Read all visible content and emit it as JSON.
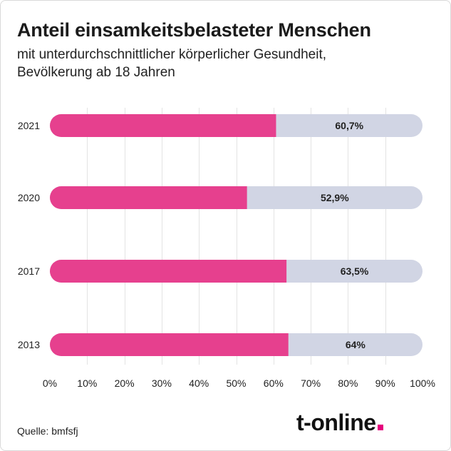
{
  "header": {
    "title": "Anteil einsamkeitsbelasteter Menschen",
    "subtitle_line1": "mit unterdurchschnittlicher körperlicher Gesundheit,",
    "subtitle_line2": "Bevölkerung ab 18 Jahren"
  },
  "footer": {
    "source": "Quelle: bmfsfj",
    "logo_text": "t-online",
    "logo_dot_color": "#e5007d"
  },
  "colors": {
    "bar_fill": "#e6408e",
    "bar_track": "#d1d5e4",
    "grid": "#e3e3e3",
    "label_text": "#222222"
  },
  "chart_data": {
    "type": "bar",
    "orientation": "horizontal",
    "categories": [
      "2021",
      "2020",
      "2017",
      "2013"
    ],
    "values": [
      60.7,
      52.9,
      63.5,
      64
    ],
    "value_labels": [
      "60,7%",
      "52,9%",
      "63,5%",
      "64%"
    ],
    "xlim": [
      0,
      100
    ],
    "x_ticks": [
      0,
      10,
      20,
      30,
      40,
      50,
      60,
      70,
      80,
      90,
      100
    ],
    "x_tick_labels": [
      "0%",
      "10%",
      "20%",
      "30%",
      "40%",
      "50%",
      "60%",
      "70%",
      "80%",
      "90%",
      "100%"
    ],
    "grid": true
  }
}
